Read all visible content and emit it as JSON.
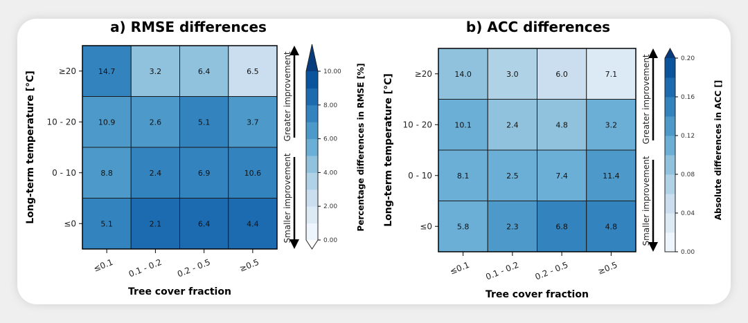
{
  "chart_data": [
    {
      "type": "heatmap",
      "title": "a) RMSE differences",
      "xlabel": "Tree cover fraction",
      "ylabel": "Long-term temperature [°C]",
      "x_categories": [
        "≤0.1",
        "0.1 - 0.2",
        "0.2 - 0.5",
        "≥0.5"
      ],
      "y_categories": [
        "≥20",
        "10 - 20",
        "0 - 10",
        "≤0"
      ],
      "cell_labels": [
        [
          "14.7",
          "3.2",
          "6.4",
          "6.5"
        ],
        [
          "10.9",
          "2.6",
          "5.1",
          "3.7"
        ],
        [
          "8.8",
          "2.4",
          "6.9",
          "10.6"
        ],
        [
          "5.1",
          "2.1",
          "6.4",
          "4.4"
        ]
      ],
      "color_values": [
        [
          7.5,
          4.5,
          4.5,
          2.5
        ],
        [
          6.5,
          6.5,
          7.5,
          6.5
        ],
        [
          6.5,
          7.5,
          7.5,
          7.5
        ],
        [
          7.5,
          8.5,
          8.5,
          8.5
        ]
      ],
      "colorbar": {
        "label": "Percentage differences in RMSE [%]",
        "range": [
          0,
          10
        ],
        "step": 1,
        "ticks": [
          "0.00",
          "2.00",
          "4.00",
          "6.00",
          "8.00",
          "10.00"
        ],
        "extend": "both",
        "colormap": "Blues"
      },
      "arrows": {
        "up": "Greater improvement",
        "down": "Smaller improvement"
      }
    },
    {
      "type": "heatmap",
      "title": "b) ACC differences",
      "xlabel": "Tree cover fraction",
      "ylabel": "Long-term temperature [°C]",
      "x_categories": [
        "≤0.1",
        "0.1 - 0.2",
        "0.2 - 0.5",
        "≥0.5"
      ],
      "y_categories": [
        "≥20",
        "10 - 20",
        "0 - 10",
        "≤0"
      ],
      "cell_labels": [
        [
          "14.0",
          "3.0",
          "6.0",
          "7.1"
        ],
        [
          "10.1",
          "2.4",
          "4.8",
          "3.2"
        ],
        [
          "8.1",
          "2.5",
          "7.4",
          "11.4"
        ],
        [
          "5.8",
          "2.3",
          "6.8",
          "4.8"
        ]
      ],
      "color_values": [
        [
          0.09,
          0.07,
          0.05,
          0.03
        ],
        [
          0.11,
          0.09,
          0.09,
          0.11
        ],
        [
          0.11,
          0.11,
          0.11,
          0.13
        ],
        [
          0.11,
          0.13,
          0.15,
          0.15
        ]
      ],
      "colorbar": {
        "label": "Absolute differences in ACC []",
        "range": [
          0,
          0.2
        ],
        "step": 0.02,
        "ticks": [
          "0.00",
          "0.04",
          "0.08",
          "0.12",
          "0.16",
          "0.20"
        ],
        "extend": "max",
        "colormap": "Blues"
      },
      "arrows": {
        "up": "Greater improvement",
        "down": "Smaller improvement"
      }
    }
  ]
}
